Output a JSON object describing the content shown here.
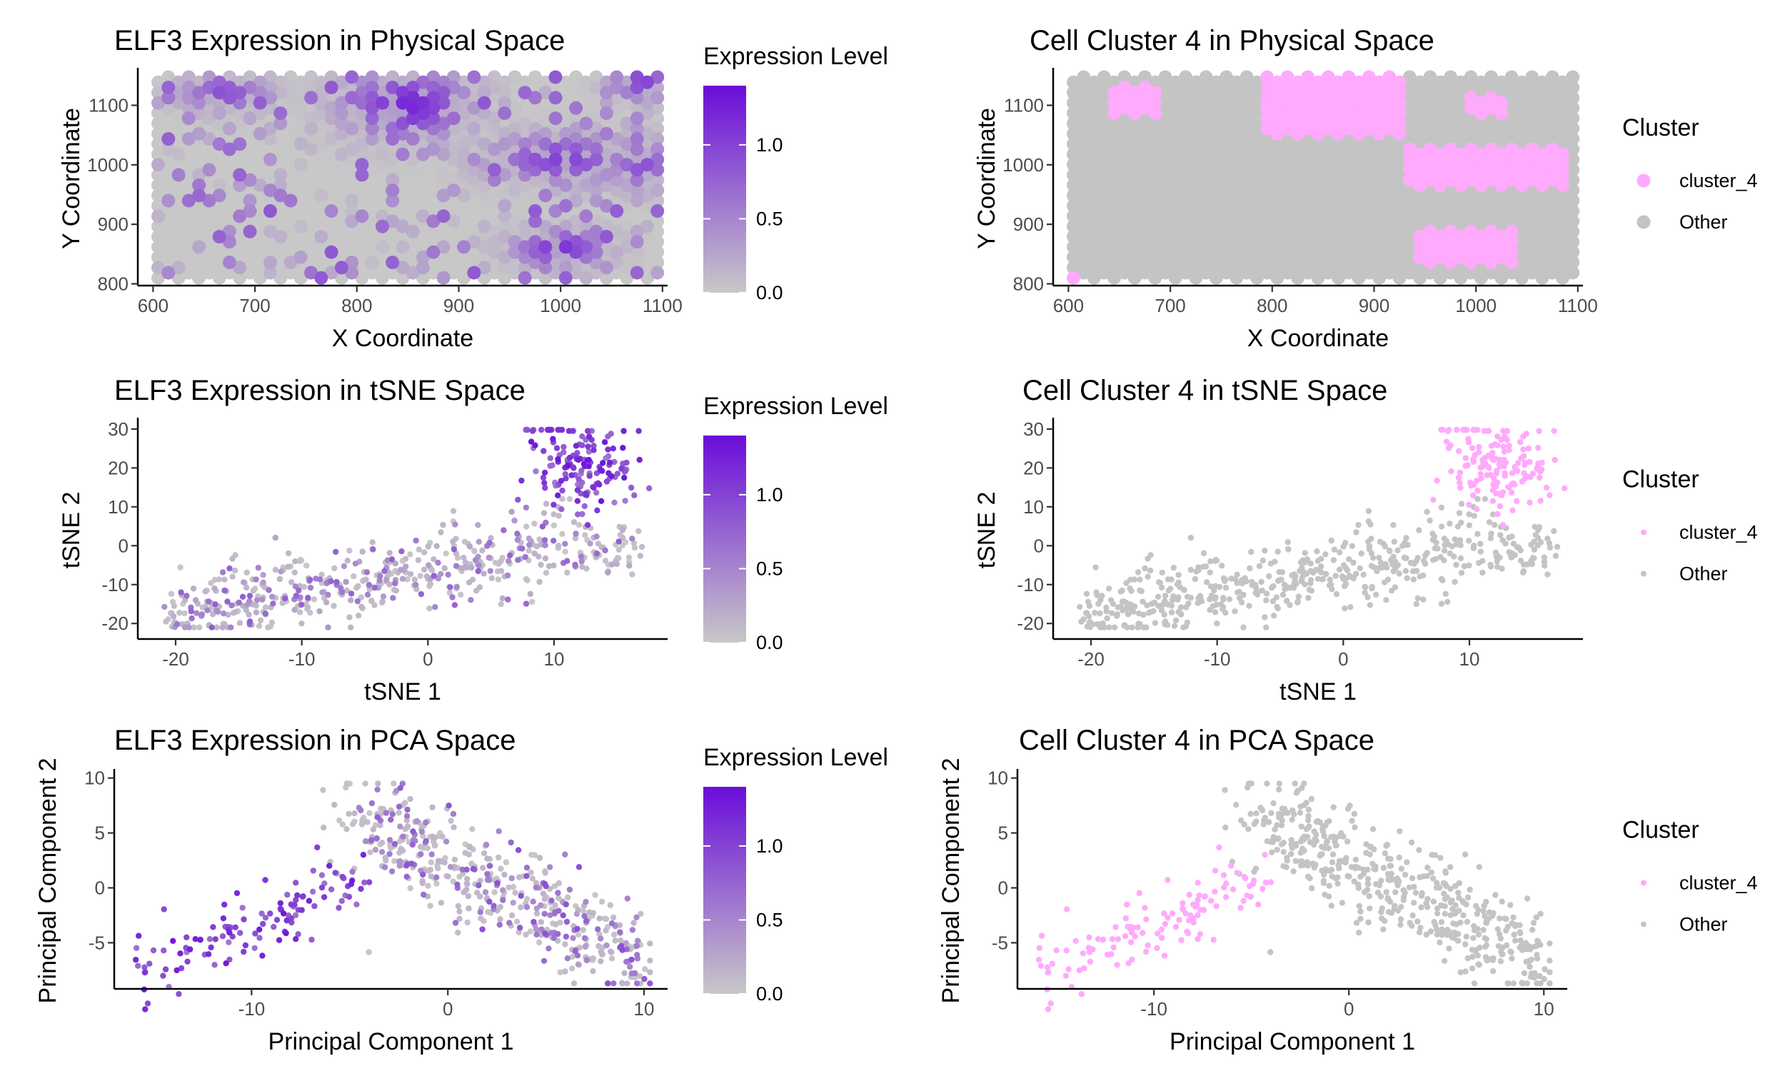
{
  "colors": {
    "expr_low": "#c8c8c8",
    "expr_high": "#6a0dd9",
    "cluster_4": "#ffaafc",
    "other": "#c4c4c4",
    "axis": "#000000"
  },
  "chart_data": [
    {
      "id": "p1",
      "type": "scatter",
      "color_mode": "expression",
      "gen": "grid",
      "title": "ELF3 Expression in Physical Space",
      "xlabel": "X Coordinate",
      "ylabel": "Y Coordinate",
      "xlim": [
        585,
        1105
      ],
      "ylim": [
        797,
        1157
      ],
      "xticks": [
        600,
        700,
        800,
        900,
        1000,
        1100
      ],
      "yticks": [
        800,
        900,
        1000,
        1100
      ],
      "legend": {
        "title": "Expression Level",
        "ticks": [
          0.0,
          0.5,
          1.0
        ],
        "tick_labels": [
          "0.0",
          "0.5",
          "1.0"
        ],
        "max": 1.4,
        "position": "right"
      }
    },
    {
      "id": "p2",
      "type": "scatter",
      "color_mode": "cluster",
      "gen": "grid",
      "title": "Cell Cluster 4 in Physical Space",
      "xlabel": "X Coordinate",
      "ylabel": "Y Coordinate",
      "xlim": [
        585,
        1105
      ],
      "ylim": [
        797,
        1157
      ],
      "xticks": [
        600,
        700,
        800,
        900,
        1000,
        1100
      ],
      "yticks": [
        800,
        900,
        1000,
        1100
      ],
      "legend": {
        "title": "Cluster",
        "items": [
          "cluster_4",
          "Other"
        ],
        "position": "right"
      }
    },
    {
      "id": "p3",
      "type": "scatter",
      "color_mode": "expression",
      "gen": "tsne",
      "title": "ELF3 Expression in tSNE Space",
      "xlabel": "tSNE 1",
      "ylabel": "tSNE 2",
      "xlim": [
        -23,
        19
      ],
      "ylim": [
        -24,
        32
      ],
      "xticks": [
        -20,
        -10,
        0,
        10
      ],
      "yticks": [
        -20,
        -10,
        0,
        10,
        20,
        30
      ],
      "legend": {
        "title": "Expression Level",
        "ticks": [
          0.0,
          0.5,
          1.0
        ],
        "tick_labels": [
          "0.0",
          "0.5",
          "1.0"
        ],
        "max": 1.4,
        "position": "right"
      }
    },
    {
      "id": "p4",
      "type": "scatter",
      "color_mode": "cluster",
      "gen": "tsne",
      "title": "Cell Cluster 4 in tSNE Space",
      "xlabel": "tSNE 1",
      "ylabel": "tSNE 2",
      "xlim": [
        -23,
        19
      ],
      "ylim": [
        -24,
        32
      ],
      "xticks": [
        -20,
        -10,
        0,
        10
      ],
      "yticks": [
        -20,
        -10,
        0,
        10,
        20,
        30
      ],
      "legend": {
        "title": "Cluster",
        "items": [
          "cluster_4",
          "Other"
        ],
        "position": "right"
      }
    },
    {
      "id": "p5",
      "type": "scatter",
      "color_mode": "expression",
      "gen": "pca",
      "title": "ELF3 Expression in PCA Space",
      "xlabel": "Principal Component 1",
      "ylabel": "Principal Component 2",
      "xlim": [
        -17,
        11.2
      ],
      "ylim": [
        -9.2,
        10.5
      ],
      "xticks": [
        -10,
        0,
        10
      ],
      "yticks": [
        -5,
        0,
        5,
        10
      ],
      "legend": {
        "title": "Expression Level",
        "ticks": [
          0.0,
          0.5,
          1.0
        ],
        "tick_labels": [
          "0.0",
          "0.5",
          "1.0"
        ],
        "max": 1.4,
        "position": "right"
      }
    },
    {
      "id": "p6",
      "type": "scatter",
      "color_mode": "cluster",
      "gen": "pca",
      "title": "Cell Cluster 4 in PCA Space",
      "xlabel": "Principal Component 1",
      "ylabel": "Principal Component 2",
      "xlim": [
        -17,
        11.2
      ],
      "ylim": [
        -9.2,
        10.5
      ],
      "xticks": [
        -10,
        0,
        10
      ],
      "yticks": [
        -5,
        0,
        5,
        10
      ],
      "legend": {
        "title": "Cluster",
        "items": [
          "cluster_4",
          "Other"
        ],
        "position": "right"
      }
    }
  ]
}
